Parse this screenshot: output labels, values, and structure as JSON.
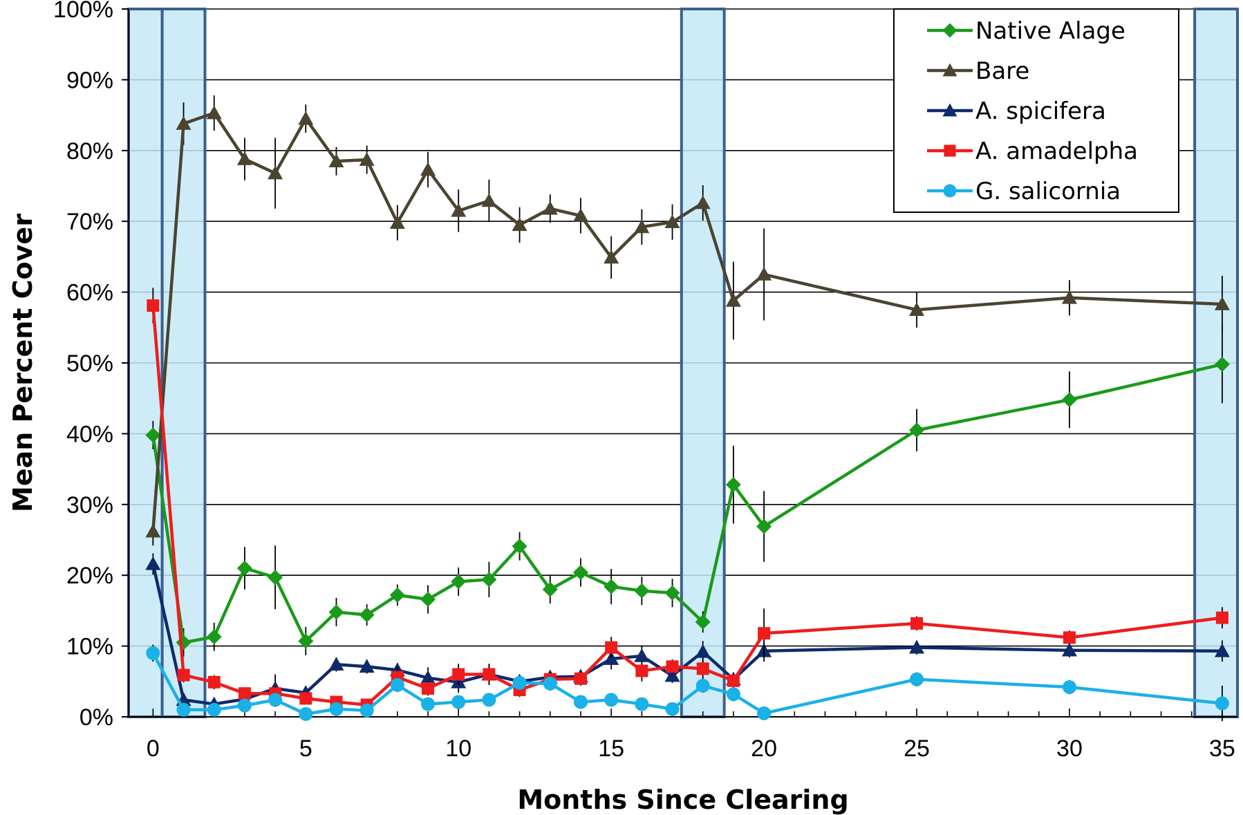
{
  "chart_data": {
    "type": "line",
    "xlabel": "Months Since Clearing",
    "ylabel": "Mean Percent Cover",
    "xlim": [
      -0.8,
      35.5
    ],
    "ylim": [
      0,
      100
    ],
    "x_ticks": [
      0,
      5,
      10,
      15,
      20,
      25,
      30,
      35
    ],
    "y_ticks": [
      0,
      10,
      20,
      30,
      40,
      50,
      60,
      70,
      80,
      90,
      100
    ],
    "y_tick_labels": [
      "0%",
      "10%",
      "20%",
      "30%",
      "40%",
      "50%",
      "60%",
      "70%",
      "80%",
      "90%",
      "100%"
    ],
    "x_tick_labels": [
      "0",
      "5",
      "10",
      "15",
      "20",
      "25",
      "30",
      "35"
    ],
    "grid": "horizontal",
    "legend_position": "top-right",
    "highlight_bands": [
      [
        -0.8,
        0.3
      ],
      [
        0.3,
        1.7
      ],
      [
        17.3,
        18.7
      ],
      [
        34.1,
        35.5
      ]
    ],
    "highlight_color": "#c6e9f7",
    "highlight_border": "#3a5f8f",
    "series": [
      {
        "name": "Native Alage",
        "color": "#1a9a1a",
        "marker": "diamond",
        "x": [
          0,
          1,
          2,
          3,
          4,
          5,
          6,
          7,
          8,
          9,
          10,
          11,
          12,
          13,
          14,
          15,
          16,
          17,
          18,
          19,
          20,
          25,
          30,
          35
        ],
        "values": [
          39.8,
          10.5,
          11.3,
          21.0,
          19.7,
          10.7,
          14.8,
          14.4,
          17.2,
          16.6,
          19.1,
          19.4,
          24.1,
          18.0,
          20.4,
          18.4,
          17.8,
          17.5,
          13.4,
          32.8,
          26.9,
          40.5,
          44.8,
          49.8
        ],
        "errors": [
          2.0,
          2.0,
          2.0,
          3.0,
          4.5,
          2.0,
          2.0,
          1.5,
          1.5,
          2.0,
          2.0,
          2.5,
          2.0,
          2.0,
          2.0,
          2.5,
          2.0,
          2.0,
          1.5,
          5.5,
          5.0,
          3.0,
          4.0,
          5.5
        ]
      },
      {
        "name": "Bare",
        "color": "#4a4430",
        "marker": "triangle",
        "x": [
          0,
          1,
          2,
          3,
          4,
          5,
          6,
          7,
          8,
          9,
          10,
          11,
          12,
          13,
          14,
          15,
          16,
          17,
          18,
          19,
          20,
          25,
          30,
          35
        ],
        "values": [
          26.2,
          83.8,
          85.3,
          78.8,
          76.8,
          84.5,
          78.5,
          78.7,
          69.8,
          77.3,
          71.5,
          72.9,
          69.5,
          71.8,
          70.8,
          64.9,
          69.2,
          69.9,
          72.6,
          58.8,
          62.5,
          57.5,
          59.2,
          58.3
        ],
        "errors": [
          2.0,
          3.0,
          2.5,
          3.0,
          5.0,
          2.0,
          2.0,
          2.0,
          2.5,
          2.5,
          3.0,
          3.0,
          2.5,
          2.0,
          2.5,
          3.0,
          2.5,
          2.5,
          2.5,
          5.5,
          6.5,
          2.5,
          2.5,
          4.0
        ]
      },
      {
        "name": "A. spicifera",
        "color": "#0d2a6b",
        "marker": "triangle",
        "x": [
          0,
          1,
          2,
          3,
          4,
          5,
          6,
          7,
          8,
          9,
          10,
          11,
          12,
          13,
          14,
          15,
          16,
          17,
          18,
          19,
          20,
          25,
          30,
          35
        ],
        "values": [
          21.6,
          2.4,
          1.8,
          2.5,
          4.0,
          3.4,
          7.4,
          7.1,
          6.6,
          5.5,
          4.9,
          6.0,
          5.0,
          5.6,
          5.7,
          8.2,
          8.6,
          5.8,
          9.2,
          5.3,
          9.3,
          9.8,
          9.4,
          9.3
        ],
        "errors": [
          1.5,
          0.8,
          0.8,
          0.8,
          2.0,
          0.8,
          1.0,
          1.0,
          1.0,
          1.5,
          1.5,
          1.5,
          1.0,
          1.0,
          1.0,
          1.5,
          1.5,
          1.0,
          1.5,
          1.0,
          1.5,
          1.0,
          1.0,
          1.5
        ]
      },
      {
        "name": "A. amadelpha",
        "color": "#ee1c1c",
        "marker": "square",
        "x": [
          0,
          1,
          2,
          3,
          4,
          5,
          6,
          7,
          8,
          9,
          10,
          11,
          12,
          13,
          14,
          15,
          16,
          17,
          18,
          19,
          20,
          25,
          30,
          35
        ],
        "values": [
          58.1,
          5.9,
          4.9,
          3.3,
          3.3,
          2.6,
          2.1,
          1.7,
          5.6,
          4.0,
          6.0,
          6.0,
          3.8,
          5.3,
          5.4,
          9.8,
          6.5,
          7.1,
          6.8,
          5.1,
          11.8,
          13.2,
          11.2,
          14.0
        ],
        "errors": [
          2.5,
          1.0,
          1.0,
          0.8,
          1.0,
          0.8,
          0.8,
          0.8,
          1.5,
          1.0,
          1.5,
          1.5,
          1.0,
          1.0,
          1.0,
          1.5,
          1.5,
          1.0,
          1.5,
          1.0,
          3.5,
          1.0,
          1.0,
          1.5
        ]
      },
      {
        "name": "G. salicornia",
        "color": "#1ab0e8",
        "marker": "circle",
        "x": [
          0,
          1,
          2,
          3,
          4,
          5,
          6,
          7,
          8,
          9,
          10,
          11,
          12,
          13,
          14,
          15,
          16,
          17,
          18,
          19,
          20,
          25,
          30,
          35
        ],
        "values": [
          9.0,
          1.0,
          1.0,
          1.6,
          2.4,
          0.4,
          1.1,
          0.9,
          4.5,
          1.8,
          2.1,
          2.4,
          4.8,
          4.7,
          2.1,
          2.4,
          1.8,
          1.1,
          4.4,
          3.2,
          0.5,
          5.3,
          4.2,
          1.9
        ],
        "errors": [
          1.2,
          0.5,
          0.5,
          0.8,
          1.0,
          0.3,
          0.5,
          0.5,
          1.0,
          0.8,
          0.8,
          0.8,
          1.0,
          1.0,
          0.8,
          0.8,
          0.8,
          0.5,
          1.0,
          1.0,
          0.5,
          1.0,
          1.0,
          2.5
        ]
      }
    ]
  }
}
